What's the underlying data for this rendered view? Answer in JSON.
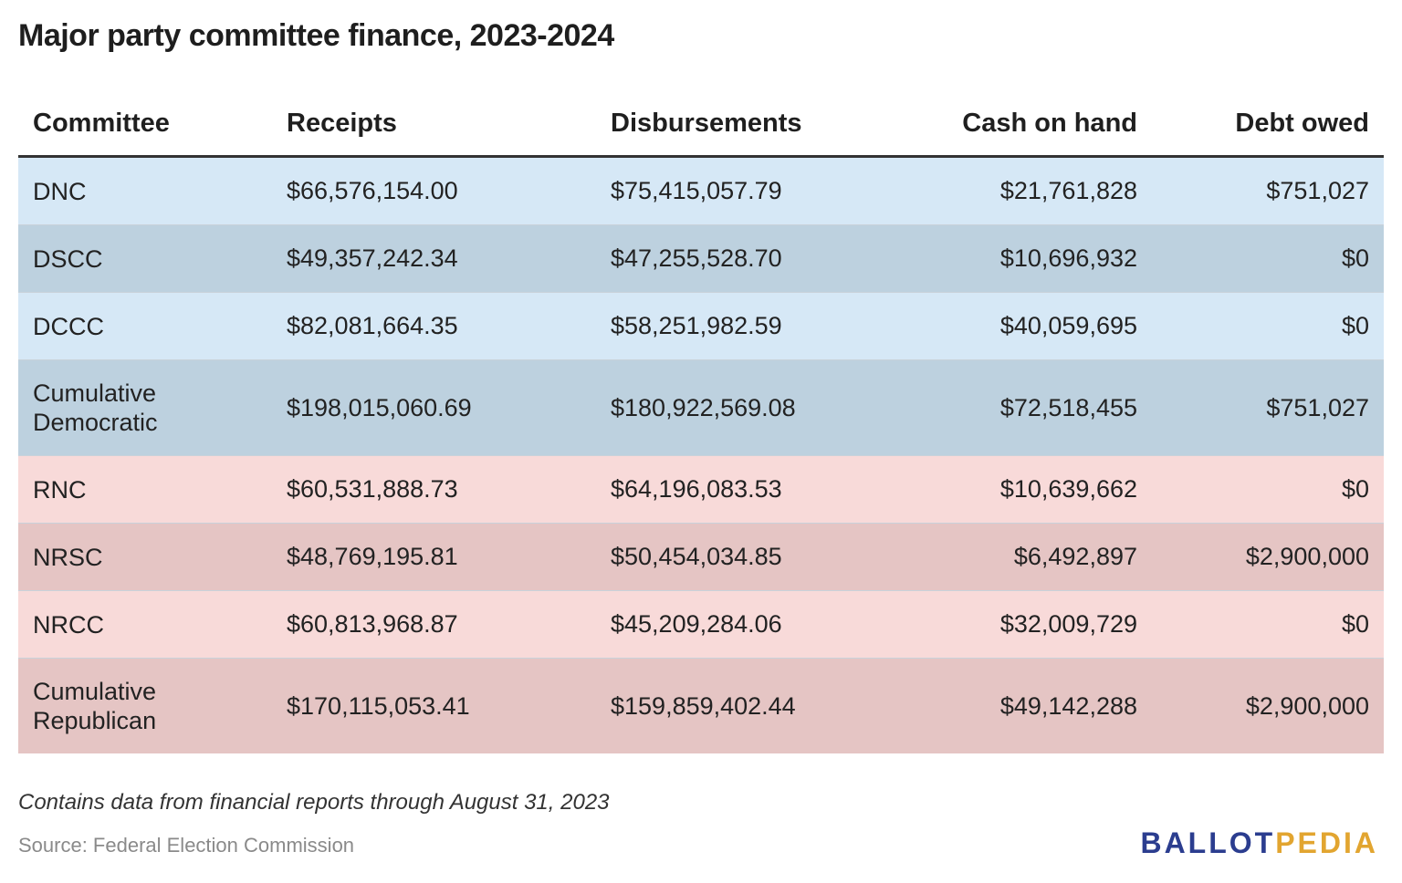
{
  "title": "Major party committee finance, 2023-2024",
  "chart_data": {
    "type": "table",
    "title": "Major party committee finance, 2023-2024",
    "columns": [
      "Committee",
      "Receipts",
      "Disbursements",
      "Cash on hand",
      "Debt owed"
    ],
    "rows": [
      {
        "committee": "DNC",
        "receipts": "$66,576,154.00",
        "disbursements": "$75,415,057.79",
        "cash_on_hand": "$21,761,828",
        "debt_owed": "$751,027",
        "party": "democratic",
        "bg": "#d6e8f6"
      },
      {
        "committee": "DSCC",
        "receipts": "$49,357,242.34",
        "disbursements": "$47,255,528.70",
        "cash_on_hand": "$10,696,932",
        "debt_owed": "$0",
        "party": "democratic",
        "bg": "#bdd1df"
      },
      {
        "committee": "DCCC",
        "receipts": "$82,081,664.35",
        "disbursements": "$58,251,982.59",
        "cash_on_hand": "$40,059,695",
        "debt_owed": "$0",
        "party": "democratic",
        "bg": "#d6e8f6"
      },
      {
        "committee": "Cumulative Democratic",
        "receipts": "$198,015,060.69",
        "disbursements": "$180,922,569.08",
        "cash_on_hand": "$72,518,455",
        "debt_owed": "$751,027",
        "party": "democratic",
        "bg": "#bdd1df"
      },
      {
        "committee": "RNC",
        "receipts": "$60,531,888.73",
        "disbursements": "$64,196,083.53",
        "cash_on_hand": "$10,639,662",
        "debt_owed": "$0",
        "party": "republican",
        "bg": "#f8dad9"
      },
      {
        "committee": "NRSC",
        "receipts": "$48,769,195.81",
        "disbursements": "$50,454,034.85",
        "cash_on_hand": "$6,492,897",
        "debt_owed": "$2,900,000",
        "party": "republican",
        "bg": "#e5c5c4"
      },
      {
        "committee": "NRCC",
        "receipts": "$60,813,968.87",
        "disbursements": "$45,209,284.06",
        "cash_on_hand": "$32,009,729",
        "debt_owed": "$0",
        "party": "republican",
        "bg": "#f8dad9"
      },
      {
        "committee": "Cumulative Republican",
        "receipts": "$170,115,053.41",
        "disbursements": "$159,859,402.44",
        "cash_on_hand": "$49,142,288",
        "debt_owed": "$2,900,000",
        "party": "republican",
        "bg": "#e5c5c4"
      }
    ]
  },
  "footnote": "Contains data from financial reports through August 31, 2023",
  "source": "Source: Federal Election Commission",
  "logo": {
    "part1": "BALLOT",
    "part2": "PEDIA",
    "color1": "#2b3d8f",
    "color2": "#e2a530"
  }
}
